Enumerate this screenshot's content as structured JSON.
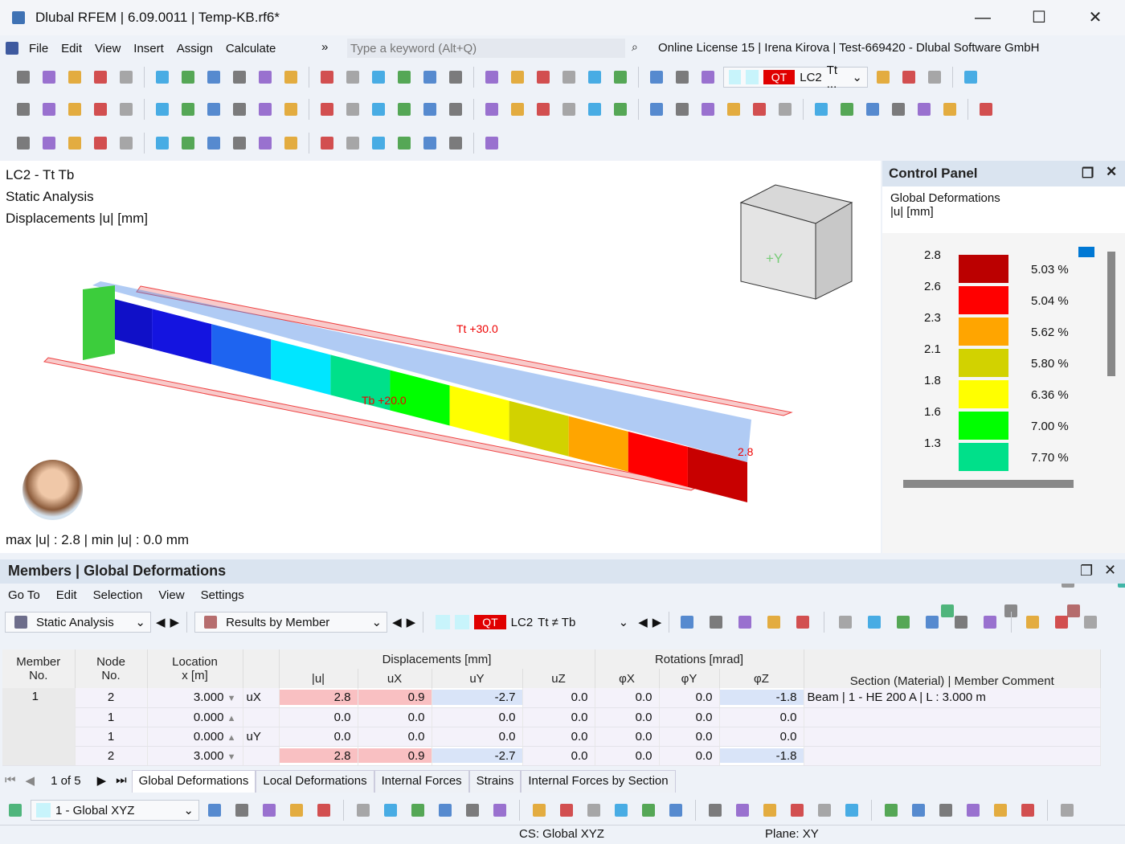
{
  "window": {
    "title": "Dlubal RFEM | 6.09.0011 | Temp-KB.rf6*",
    "minimize": "—",
    "maximize": "☐",
    "close": "✕"
  },
  "menu": {
    "items": [
      "File",
      "Edit",
      "View",
      "Insert",
      "Assign",
      "Calculate"
    ],
    "more": "»",
    "search_placeholder": "Type a keyword (Alt+Q)",
    "license": "Online License 15 | Irena Kirova | Test-669420 - Dlubal Software GmbH"
  },
  "toolbar": {
    "qt": "QT",
    "lc": "LC2",
    "lc_combo": "Tt ..."
  },
  "viewport": {
    "lines": [
      "LC2 - Tt  Tb",
      "Static Analysis",
      "Displacements |u| [mm]"
    ],
    "footer": "max |u| : 2.8 | min |u| : 0.0 mm",
    "label_tt": "Tt +30.0",
    "label_tb": "Tb +20.0",
    "label_end": "2.8",
    "cube_label": "+Y"
  },
  "control_panel": {
    "title": "Control Panel",
    "subtitle": "Global Deformations",
    "unit": "|u| [mm]",
    "legend": [
      {
        "value": "2.8",
        "pct": "5.03 %",
        "color": "#bb0000"
      },
      {
        "value": "2.6",
        "pct": "5.04 %",
        "color": "#ff0000"
      },
      {
        "value": "2.3",
        "pct": "5.62 %",
        "color": "#ffa500"
      },
      {
        "value": "2.1",
        "pct": "5.80 %",
        "color": "#d2d200"
      },
      {
        "value": "1.8",
        "pct": "6.36 %",
        "color": "#ffff00"
      },
      {
        "value": "1.6",
        "pct": "7.00 %",
        "color": "#00ff00"
      },
      {
        "value": "1.3",
        "pct": "7.70 %",
        "color": "#00e08a"
      }
    ]
  },
  "bottom": {
    "title": "Members | Global Deformations",
    "menu": [
      "Go To",
      "Edit",
      "Selection",
      "View",
      "Settings"
    ],
    "analysis": "Static Analysis",
    "results_by": "Results by Member",
    "qt": "QT",
    "lc": "LC2",
    "lc_combo": "Tt ≠ Tb",
    "headers": {
      "member": "Member",
      "member2": "No.",
      "node": "Node",
      "node2": "No.",
      "loc": "Location",
      "loc2": "x [m]",
      "disp": "Displacements [mm]",
      "rot": "Rotations [mrad]",
      "u": "|u|",
      "ux": "uX",
      "uy": "uY",
      "uz": "uZ",
      "px": "φX",
      "py": "φY",
      "pz": "φZ",
      "section": "Section (Material) | Member Comment"
    },
    "rows": [
      {
        "member": "1",
        "node": "2",
        "x": "3.000",
        "dir": "uX",
        "u": "2.8",
        "ux": "0.9",
        "uy": "-2.7",
        "uz": "0.0",
        "px": "0.0",
        "py": "0.0",
        "pz": "-1.8",
        "section": "Beam | 1 - HE 200 A | L : 3.000 m"
      },
      {
        "member": "",
        "node": "1",
        "x": "0.000",
        "dir": "",
        "u": "0.0",
        "ux": "0.0",
        "uy": "0.0",
        "uz": "0.0",
        "px": "0.0",
        "py": "0.0",
        "pz": "0.0",
        "section": ""
      },
      {
        "member": "",
        "node": "1",
        "x": "0.000",
        "dir": "uY",
        "u": "0.0",
        "ux": "0.0",
        "uy": "0.0",
        "uz": "0.0",
        "px": "0.0",
        "py": "0.0",
        "pz": "0.0",
        "section": ""
      },
      {
        "member": "",
        "node": "2",
        "x": "3.000",
        "dir": "",
        "u": "2.8",
        "ux": "0.9",
        "uy": "-2.7",
        "uz": "0.0",
        "px": "0.0",
        "py": "0.0",
        "pz": "-1.8",
        "section": ""
      }
    ],
    "pager": "1 of 5",
    "tabs": [
      "Global Deformations",
      "Local Deformations",
      "Internal Forces",
      "Strains",
      "Internal Forces by Section"
    ],
    "cs": "1 - Global XYZ"
  },
  "status": {
    "cs": "CS: Global XYZ",
    "plane": "Plane: XY"
  }
}
